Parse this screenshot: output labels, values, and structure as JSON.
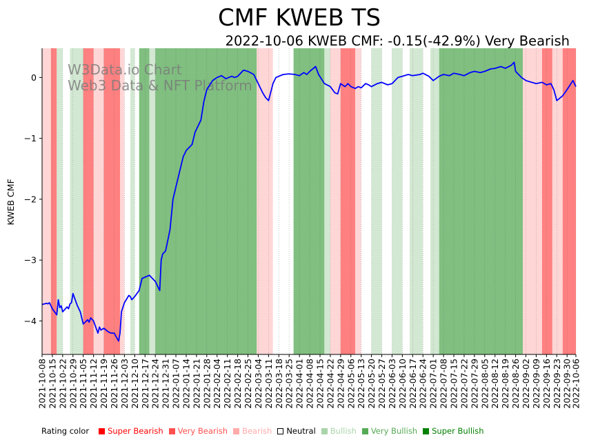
{
  "chart_data": {
    "type": "line",
    "title": "CMF KWEB TS",
    "subtitle": "2022-10-06 KWEB CMF: -0.15(-42.9%) Very Bearish",
    "ylabel": "KWEB CMF",
    "xlabel": "",
    "ylim": [
      -4.55,
      0.48
    ],
    "yticks": [
      0,
      -1,
      -2,
      -3,
      -4
    ],
    "watermark": [
      "W3Data.io Chart",
      "Web3 Data & NFT Platform"
    ],
    "start_date": "2021-10-08",
    "end_date": "2022-10-06",
    "xtick_labels": [
      "2021-10-08",
      "2021-10-15",
      "2021-10-22",
      "2021-10-29",
      "2021-11-05",
      "2021-11-12",
      "2021-11-19",
      "2021-11-26",
      "2021-12-03",
      "2021-12-10",
      "2021-12-17",
      "2021-12-24",
      "2021-12-31",
      "2022-01-07",
      "2022-01-14",
      "2022-01-21",
      "2022-01-28",
      "2022-02-04",
      "2022-02-11",
      "2022-02-18",
      "2022-02-25",
      "2022-03-04",
      "2022-03-11",
      "2022-03-18",
      "2022-03-25",
      "2022-04-01",
      "2022-04-08",
      "2022-04-15",
      "2022-04-22",
      "2022-04-29",
      "2022-05-06",
      "2022-05-13",
      "2022-05-20",
      "2022-05-27",
      "2022-06-03",
      "2022-06-10",
      "2022-06-17",
      "2022-06-24",
      "2022-07-01",
      "2022-07-08",
      "2022-07-15",
      "2022-07-22",
      "2022-07-29",
      "2022-08-05",
      "2022-08-12",
      "2022-08-19",
      "2022-08-26",
      "2022-09-02",
      "2022-09-09",
      "2022-09-16",
      "2022-09-23",
      "2022-09-30",
      "2022-10-06"
    ],
    "series": [
      {
        "name": "KWEB CMF",
        "color": "#0000ff",
        "points": [
          [
            "2021-10-08",
            -3.73
          ],
          [
            "2021-10-11",
            -3.71
          ],
          [
            "2021-10-12",
            -3.72
          ],
          [
            "2021-10-13",
            -3.7
          ],
          [
            "2021-10-15",
            -3.8
          ],
          [
            "2021-10-18",
            -3.9
          ],
          [
            "2021-10-19",
            -3.65
          ],
          [
            "2021-10-20",
            -3.78
          ],
          [
            "2021-10-21",
            -3.75
          ],
          [
            "2021-10-22",
            -3.85
          ],
          [
            "2021-10-25",
            -3.77
          ],
          [
            "2021-10-26",
            -3.8
          ],
          [
            "2021-10-27",
            -3.72
          ],
          [
            "2021-10-28",
            -3.7
          ],
          [
            "2021-10-29",
            -3.55
          ],
          [
            "2021-11-01",
            -3.75
          ],
          [
            "2021-11-03",
            -3.85
          ],
          [
            "2021-11-05",
            -4.05
          ],
          [
            "2021-11-08",
            -3.98
          ],
          [
            "2021-11-09",
            -4.02
          ],
          [
            "2021-11-10",
            -3.95
          ],
          [
            "2021-11-12",
            -4.0
          ],
          [
            "2021-11-15",
            -4.2
          ],
          [
            "2021-11-16",
            -4.1
          ],
          [
            "2021-11-17",
            -4.15
          ],
          [
            "2021-11-19",
            -4.12
          ],
          [
            "2021-11-22",
            -4.18
          ],
          [
            "2021-11-24",
            -4.2
          ],
          [
            "2021-11-26",
            -4.2
          ],
          [
            "2021-11-29",
            -4.33
          ],
          [
            "2021-11-30",
            -4.2
          ],
          [
            "2021-12-01",
            -3.85
          ],
          [
            "2021-12-03",
            -3.7
          ],
          [
            "2021-12-06",
            -3.58
          ],
          [
            "2021-12-07",
            -3.6
          ],
          [
            "2021-12-08",
            -3.65
          ],
          [
            "2021-12-10",
            -3.6
          ],
          [
            "2021-12-13",
            -3.5
          ],
          [
            "2021-12-15",
            -3.3
          ],
          [
            "2021-12-17",
            -3.28
          ],
          [
            "2021-12-20",
            -3.25
          ],
          [
            "2021-12-22",
            -3.3
          ],
          [
            "2021-12-24",
            -3.35
          ],
          [
            "2021-12-27",
            -3.5
          ],
          [
            "2021-12-28",
            -3.0
          ],
          [
            "2021-12-29",
            -2.9
          ],
          [
            "2021-12-31",
            -2.85
          ],
          [
            "2022-01-03",
            -2.5
          ],
          [
            "2022-01-05",
            -2.0
          ],
          [
            "2022-01-07",
            -1.8
          ],
          [
            "2022-01-10",
            -1.5
          ],
          [
            "2022-01-12",
            -1.3
          ],
          [
            "2022-01-14",
            -1.2
          ],
          [
            "2022-01-18",
            -1.1
          ],
          [
            "2022-01-20",
            -0.9
          ],
          [
            "2022-01-24",
            -0.7
          ],
          [
            "2022-01-26",
            -0.4
          ],
          [
            "2022-01-28",
            -0.2
          ],
          [
            "2022-02-01",
            -0.05
          ],
          [
            "2022-02-04",
            0.0
          ],
          [
            "2022-02-07",
            0.03
          ],
          [
            "2022-02-10",
            -0.02
          ],
          [
            "2022-02-14",
            0.02
          ],
          [
            "2022-02-16",
            0.0
          ],
          [
            "2022-02-18",
            0.02
          ],
          [
            "2022-02-22",
            0.12
          ],
          [
            "2022-02-25",
            0.1
          ],
          [
            "2022-03-01",
            0.05
          ],
          [
            "2022-03-04",
            -0.1
          ],
          [
            "2022-03-07",
            -0.25
          ],
          [
            "2022-03-09",
            -0.33
          ],
          [
            "2022-03-11",
            -0.38
          ],
          [
            "2022-03-14",
            -0.1
          ],
          [
            "2022-03-16",
            0.0
          ],
          [
            "2022-03-18",
            0.02
          ],
          [
            "2022-03-21",
            0.05
          ],
          [
            "2022-03-25",
            0.06
          ],
          [
            "2022-03-29",
            0.05
          ],
          [
            "2022-04-01",
            0.03
          ],
          [
            "2022-04-04",
            0.08
          ],
          [
            "2022-04-06",
            0.05
          ],
          [
            "2022-04-08",
            0.1
          ],
          [
            "2022-04-12",
            0.18
          ],
          [
            "2022-04-14",
            0.05
          ],
          [
            "2022-04-18",
            -0.1
          ],
          [
            "2022-04-22",
            -0.15
          ],
          [
            "2022-04-25",
            -0.25
          ],
          [
            "2022-04-27",
            -0.27
          ],
          [
            "2022-04-29",
            -0.1
          ],
          [
            "2022-05-02",
            -0.15
          ],
          [
            "2022-05-04",
            -0.1
          ],
          [
            "2022-05-06",
            -0.15
          ],
          [
            "2022-05-09",
            -0.18
          ],
          [
            "2022-05-11",
            -0.15
          ],
          [
            "2022-05-13",
            -0.17
          ],
          [
            "2022-05-16",
            -0.1
          ],
          [
            "2022-05-18",
            -0.12
          ],
          [
            "2022-05-20",
            -0.15
          ],
          [
            "2022-05-24",
            -0.1
          ],
          [
            "2022-05-27",
            -0.08
          ],
          [
            "2022-05-31",
            -0.12
          ],
          [
            "2022-06-03",
            -0.1
          ],
          [
            "2022-06-07",
            0.0
          ],
          [
            "2022-06-10",
            0.02
          ],
          [
            "2022-06-14",
            0.05
          ],
          [
            "2022-06-17",
            0.03
          ],
          [
            "2022-06-22",
            0.05
          ],
          [
            "2022-06-24",
            0.07
          ],
          [
            "2022-06-28",
            0.02
          ],
          [
            "2022-07-01",
            -0.05
          ],
          [
            "2022-07-05",
            0.02
          ],
          [
            "2022-07-08",
            0.05
          ],
          [
            "2022-07-12",
            0.03
          ],
          [
            "2022-07-15",
            0.07
          ],
          [
            "2022-07-19",
            0.05
          ],
          [
            "2022-07-22",
            0.03
          ],
          [
            "2022-07-26",
            0.08
          ],
          [
            "2022-07-29",
            0.1
          ],
          [
            "2022-08-02",
            0.08
          ],
          [
            "2022-08-05",
            0.1
          ],
          [
            "2022-08-09",
            0.14
          ],
          [
            "2022-08-12",
            0.15
          ],
          [
            "2022-08-16",
            0.18
          ],
          [
            "2022-08-19",
            0.15
          ],
          [
            "2022-08-23",
            0.2
          ],
          [
            "2022-08-25",
            0.25
          ],
          [
            "2022-08-26",
            0.1
          ],
          [
            "2022-08-30",
            0.0
          ],
          [
            "2022-09-02",
            -0.05
          ],
          [
            "2022-09-06",
            -0.08
          ],
          [
            "2022-09-09",
            -0.1
          ],
          [
            "2022-09-13",
            -0.08
          ],
          [
            "2022-09-16",
            -0.12
          ],
          [
            "2022-09-19",
            -0.1
          ],
          [
            "2022-09-21",
            -0.2
          ],
          [
            "2022-09-23",
            -0.38
          ],
          [
            "2022-09-27",
            -0.3
          ],
          [
            "2022-09-30",
            -0.2
          ],
          [
            "2022-10-04",
            -0.05
          ],
          [
            "2022-10-06",
            -0.15
          ]
        ]
      }
    ],
    "rating_bands": [
      [
        "2021-10-08",
        "2021-10-14",
        "Bearish"
      ],
      [
        "2021-10-14",
        "2021-10-18",
        "Very Bearish"
      ],
      [
        "2021-10-18",
        "2021-10-22",
        "Bullish"
      ],
      [
        "2021-10-22",
        "2021-10-27",
        "Neutral"
      ],
      [
        "2021-10-27",
        "2021-11-05",
        "Bullish"
      ],
      [
        "2021-11-05",
        "2021-11-12",
        "Very Bearish"
      ],
      [
        "2021-11-12",
        "2021-11-19",
        "Bearish"
      ],
      [
        "2021-11-19",
        "2021-11-30",
        "Very Bearish"
      ],
      [
        "2021-11-30",
        "2021-12-03",
        "Bearish"
      ],
      [
        "2021-12-03",
        "2021-12-07",
        "Neutral"
      ],
      [
        "2021-12-07",
        "2021-12-10",
        "Bullish"
      ],
      [
        "2021-12-10",
        "2021-12-13",
        "Neutral"
      ],
      [
        "2021-12-13",
        "2021-12-20",
        "Very Bullish"
      ],
      [
        "2021-12-20",
        "2021-12-24",
        "Bullish"
      ],
      [
        "2021-12-24",
        "2022-03-03",
        "Very Bullish"
      ],
      [
        "2022-03-03",
        "2022-03-14",
        "Bearish"
      ],
      [
        "2022-03-14",
        "2022-03-28",
        "Neutral"
      ],
      [
        "2022-03-28",
        "2022-04-18",
        "Very Bullish"
      ],
      [
        "2022-04-18",
        "2022-04-22",
        "Bullish"
      ],
      [
        "2022-04-22",
        "2022-04-29",
        "Bearish"
      ],
      [
        "2022-04-29",
        "2022-05-09",
        "Very Bearish"
      ],
      [
        "2022-05-09",
        "2022-05-13",
        "Bearish"
      ],
      [
        "2022-05-13",
        "2022-05-20",
        "Neutral"
      ],
      [
        "2022-05-20",
        "2022-05-27",
        "Bullish"
      ],
      [
        "2022-05-27",
        "2022-06-03",
        "Neutral"
      ],
      [
        "2022-06-03",
        "2022-06-10",
        "Bullish"
      ],
      [
        "2022-06-10",
        "2022-06-15",
        "Neutral"
      ],
      [
        "2022-06-15",
        "2022-06-24",
        "Bullish"
      ],
      [
        "2022-06-24",
        "2022-06-29",
        "Neutral"
      ],
      [
        "2022-06-29",
        "2022-07-05",
        "Bullish"
      ],
      [
        "2022-07-05",
        "2022-08-31",
        "Very Bullish"
      ],
      [
        "2022-08-31",
        "2022-09-13",
        "Bearish"
      ],
      [
        "2022-09-13",
        "2022-09-20",
        "Very Bearish"
      ],
      [
        "2022-09-20",
        "2022-09-27",
        "Bearish"
      ],
      [
        "2022-09-27",
        "2022-10-06",
        "Very Bearish"
      ]
    ],
    "legend": {
      "title": "Rating color",
      "items": [
        {
          "label": "Super Bearish",
          "color": "#ff0000"
        },
        {
          "label": "Very Bearish",
          "color": "#ff5050"
        },
        {
          "label": "Bearish",
          "color": "#ffaaaa"
        },
        {
          "label": "Neutral",
          "color": "#ffffff"
        },
        {
          "label": "Bullish",
          "color": "#aad4aa"
        },
        {
          "label": "Very Bullish",
          "color": "#55aa55"
        },
        {
          "label": "Super Bullish",
          "color": "#008000"
        }
      ]
    },
    "band_colors": {
      "Super Bearish": "#ff3030",
      "Very Bearish": "#ff8080",
      "Bearish": "#ffd6d6",
      "Neutral": "#ffffff",
      "Bullish": "#d2e8d2",
      "Very Bullish": "#80bf80",
      "Super Bullish": "#3f9f3f"
    }
  }
}
